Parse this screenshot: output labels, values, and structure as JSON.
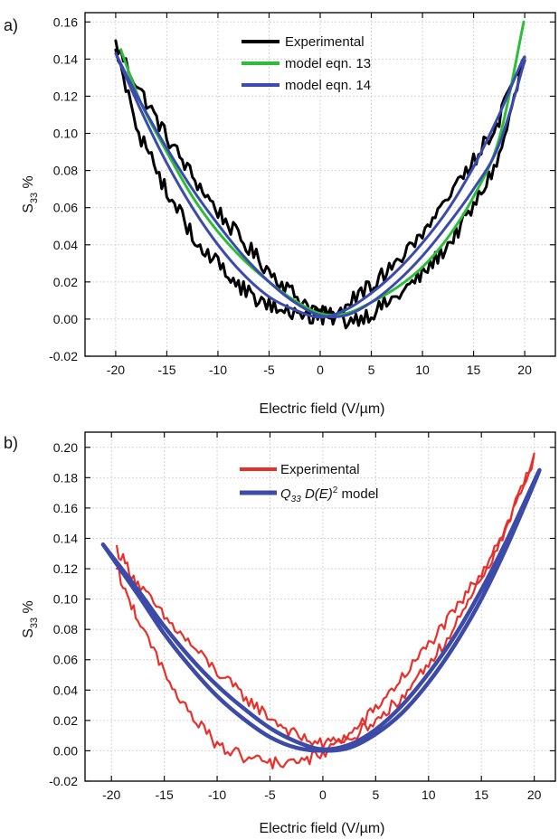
{
  "chart_data": [
    {
      "type": "line",
      "panel_label": "a)",
      "xlabel": "Electric field (V/µm)",
      "ylabel_main": "S",
      "ylabel_sub": "33",
      "ylabel_unit": "%",
      "xlim": [
        -23,
        23
      ],
      "ylim": [
        -0.02,
        0.165
      ],
      "xticks": [
        -20,
        -15,
        -10,
        -5,
        0,
        5,
        10,
        15,
        20
      ],
      "xtick_labels": [
        "-20",
        "-15",
        "-10",
        "-5",
        "0",
        "5",
        "10",
        "15",
        "20"
      ],
      "yticks": [
        -0.02,
        0.0,
        0.02,
        0.04,
        0.06,
        0.08,
        0.1,
        0.12,
        0.14,
        0.16
      ],
      "ytick_labels": [
        "-0.02",
        "0.00",
        "0.02",
        "0.04",
        "0.06",
        "0.08",
        "0.10",
        "0.12",
        "0.14",
        "0.16"
      ],
      "grid": true,
      "legend_position": "top-center",
      "series": [
        {
          "name": "Experimental",
          "color": "#000000",
          "width": 3,
          "noise": 0.0045,
          "x": [
            -20,
            -17.5,
            -15,
            -12.5,
            -10,
            -7.5,
            -5,
            -2.5,
            0,
            2.5,
            5,
            7.5,
            10,
            12.5,
            15,
            17.5,
            20,
            17.5,
            15,
            12.5,
            10,
            7.5,
            5,
            2.5,
            0,
            -2.5,
            -5,
            -7.5,
            -10,
            -12.5,
            -15,
            -17.5,
            -20
          ],
          "y": [
            0.148,
            0.122,
            0.098,
            0.077,
            0.058,
            0.041,
            0.026,
            0.013,
            0.003,
            -0.001,
            0.003,
            0.012,
            0.024,
            0.04,
            0.06,
            0.087,
            0.14,
            0.108,
            0.085,
            0.064,
            0.046,
            0.031,
            0.018,
            0.008,
            0.001,
            0.002,
            0.007,
            0.016,
            0.029,
            0.046,
            0.068,
            0.097,
            0.145
          ]
        },
        {
          "name": "model eqn. 13",
          "color": "#2ebd3b",
          "width": 3,
          "noise": 0,
          "x": [
            -19.5,
            -17.5,
            -15,
            -12.5,
            -10,
            -7.5,
            -5,
            -2.5,
            0,
            2.5,
            5,
            7.5,
            10,
            12.5,
            15,
            17.5,
            19.9
          ],
          "y": [
            0.145,
            0.116,
            0.09,
            0.066,
            0.047,
            0.032,
            0.02,
            0.01,
            0.003,
            0.003,
            0.009,
            0.017,
            0.028,
            0.044,
            0.066,
            0.097,
            0.16
          ]
        },
        {
          "name": "model eqn. 14",
          "color": "#3a4aad",
          "width": 3,
          "noise": 0,
          "x": [
            -20,
            -17.5,
            -15,
            -12.5,
            -10,
            -7.5,
            -5,
            -2.5,
            0,
            2.5,
            5,
            7.5,
            10,
            12.5,
            15,
            17.5,
            20,
            17.5,
            15,
            12.5,
            10,
            7.5,
            5,
            2.5,
            0,
            -2.5,
            -5,
            -7.5,
            -10,
            -12.5,
            -15,
            -17.5,
            -20
          ],
          "y": [
            0.143,
            0.116,
            0.092,
            0.07,
            0.051,
            0.034,
            0.02,
            0.009,
            0.002,
            0.002,
            0.009,
            0.02,
            0.034,
            0.051,
            0.07,
            0.094,
            0.141,
            0.11,
            0.082,
            0.059,
            0.041,
            0.026,
            0.014,
            0.005,
            0.001,
            0.005,
            0.012,
            0.024,
            0.04,
            0.06,
            0.084,
            0.112,
            0.143
          ]
        }
      ]
    },
    {
      "type": "line",
      "panel_label": "b)",
      "xlabel": "Electric field (V/µm)",
      "ylabel_main": "S",
      "ylabel_sub": "33",
      "ylabel_unit": "%",
      "xlim": [
        -22.5,
        22
      ],
      "ylim": [
        -0.02,
        0.21
      ],
      "xticks": [
        -20,
        -15,
        -10,
        -5,
        0,
        5,
        10,
        15,
        20
      ],
      "xtick_labels": [
        "-20",
        "-15",
        "-10",
        "-5",
        "0",
        "5",
        "10",
        "15",
        "20"
      ],
      "yticks": [
        -0.02,
        0.0,
        0.02,
        0.04,
        0.06,
        0.08,
        0.1,
        0.12,
        0.14,
        0.16,
        0.18,
        0.2
      ],
      "ytick_labels": [
        "-0.02",
        "0.00",
        "0.02",
        "0.04",
        "0.06",
        "0.08",
        "0.10",
        "0.12",
        "0.14",
        "0.16",
        "0.18",
        "0.20"
      ],
      "grid": true,
      "legend_position": "top-center",
      "series": [
        {
          "name": "Experimental",
          "color": "#e8302a",
          "width": 2.2,
          "noise": 0.004,
          "x": [
            -19.5,
            -17.5,
            -15,
            -12.5,
            -10,
            -7.5,
            -5,
            -2.5,
            0,
            2.5,
            5,
            7.5,
            10,
            12.5,
            15,
            17.5,
            20,
            17.5,
            15,
            12.5,
            10,
            7.5,
            5,
            2.5,
            0,
            -2.5,
            -5,
            -7.5,
            -10,
            -12.5,
            -15,
            -17.5,
            -19.5
          ],
          "y": [
            0.133,
            0.11,
            0.088,
            0.07,
            0.052,
            0.036,
            0.022,
            0.01,
            0.004,
            0.01,
            0.028,
            0.048,
            0.07,
            0.092,
            0.118,
            0.15,
            0.192,
            0.15,
            0.112,
            0.082,
            0.056,
            0.036,
            0.02,
            0.008,
            -0.002,
            -0.008,
            -0.008,
            -0.004,
            0.004,
            0.024,
            0.052,
            0.086,
            0.12
          ]
        },
        {
          "name": "Q33 D(E)2 model",
          "color": "#3c4aa8",
          "width": 4.5,
          "noise": 0,
          "x": [
            -20.8,
            -17.5,
            -15,
            -12.5,
            -10,
            -7.5,
            -5,
            -2.5,
            0,
            2.5,
            5,
            7.5,
            10,
            12.5,
            15,
            17.5,
            20.5,
            17.5,
            15,
            12.5,
            10,
            7.5,
            5,
            2.5,
            0,
            -2.5,
            -5,
            -7.5,
            -10,
            -12.5,
            -15,
            -17.5,
            -20.8
          ],
          "y": [
            0.136,
            0.106,
            0.082,
            0.061,
            0.043,
            0.028,
            0.015,
            0.006,
            0.001,
            0.004,
            0.014,
            0.03,
            0.051,
            0.076,
            0.106,
            0.14,
            0.185,
            0.136,
            0.1,
            0.07,
            0.045,
            0.025,
            0.011,
            0.002,
            0.0,
            0.002,
            0.009,
            0.021,
            0.036,
            0.055,
            0.077,
            0.103,
            0.136
          ]
        }
      ]
    }
  ]
}
